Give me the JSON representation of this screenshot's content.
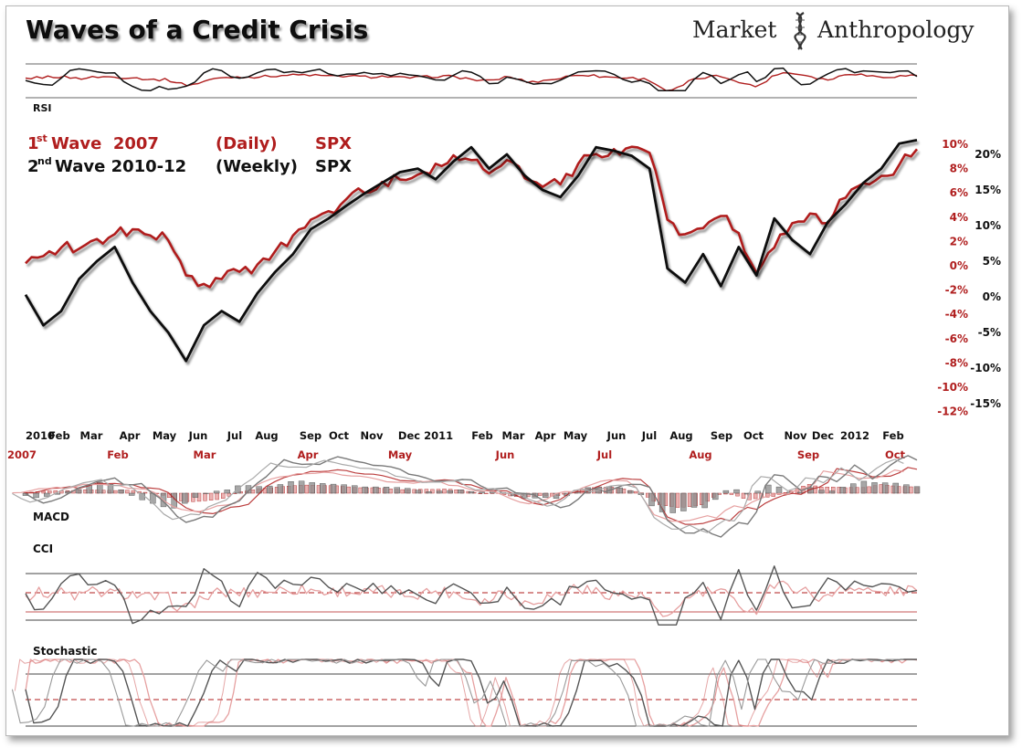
{
  "header": {
    "title": "Waves of a Credit Crisis",
    "brand_left": "Market",
    "brand_right": "Anthropology"
  },
  "legend": {
    "red": {
      "ord": "1",
      "ord_suffix": "st",
      "text": "Wave  2007",
      "freq": "(Daily)",
      "ticker": "SPX"
    },
    "black": {
      "ord": "2",
      "ord_suffix": "nd",
      "text": "Wave 2010-12",
      "freq": "(Weekly)",
      "ticker": "SPX"
    }
  },
  "colors": {
    "red": "#b01e1e",
    "black": "#111111",
    "red_light": "#e6a0a0",
    "black_light": "#7a7a7a"
  },
  "panels": {
    "rsi": "RSI",
    "macd": "MACD",
    "cci": "CCI",
    "stochastic": "Stochastic"
  },
  "chart_data": [
    {
      "type": "line",
      "title": "Waves of a Credit Crisis",
      "x_labels_black": [
        "2010",
        "Feb",
        "Mar",
        "Apr",
        "May",
        "Jun",
        "Jul",
        "Aug",
        "Sep",
        "Oct",
        "Nov",
        "Dec 2011",
        "Feb",
        "Mar",
        "Apr",
        "May",
        "Jun",
        "Jul",
        "Aug",
        "Sep",
        "Oct",
        "Nov",
        "Dec",
        "2012",
        "Feb"
      ],
      "x_labels_red": [
        "2007",
        "Feb",
        "Mar",
        "Apr",
        "May",
        "Jun",
        "Jul",
        "Aug",
        "Sep",
        "Oct"
      ],
      "y_axis_red": {
        "unit": "%",
        "ticks": [
          "10%",
          "8%",
          "6%",
          "4%",
          "2%",
          "0%",
          "-2%",
          "-4%",
          "-6%",
          "-8%",
          "-10%",
          "-12%"
        ]
      },
      "y_axis_black": {
        "unit": "%",
        "ticks": [
          "20%",
          "15%",
          "10%",
          "5%",
          "0%",
          "-5%",
          "-10%",
          "-15%"
        ]
      },
      "series": [
        {
          "name": "1st Wave 2007 (Daily) SPX",
          "color": "#b01e1e",
          "x": [
            0,
            2,
            4,
            6,
            8,
            10,
            12,
            14,
            16,
            18,
            20,
            22,
            24,
            26,
            28,
            30,
            32,
            34,
            36,
            38,
            40,
            42,
            44,
            46,
            48,
            50,
            52,
            54,
            56,
            58,
            60,
            62,
            64,
            66,
            68,
            70,
            72,
            74,
            76,
            78,
            80,
            82,
            84,
            86,
            88,
            90,
            92,
            94,
            96,
            98,
            100
          ],
          "values": [
            0.2,
            0.8,
            1.5,
            1.4,
            2.2,
            2.6,
            3.0,
            2.5,
            2.1,
            -0.8,
            -1.5,
            -1.1,
            -0.5,
            0.1,
            1.2,
            2.5,
            3.8,
            4.5,
            5.5,
            6.0,
            6.9,
            7.1,
            7.5,
            8.4,
            9.1,
            8.7,
            7.6,
            8.7,
            7.2,
            6.5,
            6.7,
            8.4,
            9.2,
            9.6,
            9.8,
            9.3,
            3.8,
            2.6,
            3.1,
            4.1,
            2.7,
            -0.6,
            1.5,
            3.5,
            4.3,
            3.5,
            5.6,
            6.8,
            7.4,
            8.3,
            9.6
          ]
        },
        {
          "name": "2nd Wave 2010-12 (Weekly) SPX",
          "color": "#111111",
          "x": [
            0,
            2,
            4,
            6,
            8,
            10,
            12,
            14,
            16,
            18,
            20,
            22,
            24,
            26,
            28,
            30,
            32,
            34,
            36,
            38,
            40,
            42,
            44,
            46,
            48,
            50,
            52,
            54,
            56,
            58,
            60,
            62,
            64,
            66,
            68,
            70,
            72,
            74,
            76,
            78,
            80,
            82,
            84,
            86,
            88,
            90,
            92,
            94,
            96,
            98,
            100
          ],
          "values": [
            0.3,
            -4.0,
            -2.0,
            2.5,
            5.0,
            7.0,
            2.0,
            -2.0,
            -5.0,
            -9.0,
            -4.0,
            -2.0,
            -3.5,
            0.5,
            3.5,
            6.0,
            9.5,
            11.0,
            12.8,
            14.5,
            16.0,
            17.5,
            18.0,
            16.5,
            19.0,
            21.0,
            18.0,
            20.0,
            17.0,
            15.0,
            14.0,
            17.0,
            21.0,
            20.5,
            19.8,
            18.0,
            4.0,
            2.0,
            6.0,
            1.5,
            7.0,
            3.0,
            11.0,
            8.0,
            6.0,
            10.5,
            13.0,
            16.0,
            18.0,
            21.5,
            22.0
          ]
        }
      ]
    },
    {
      "type": "line",
      "title": "RSI",
      "series": [
        {
          "name": "2007",
          "values": []
        },
        {
          "name": "2010-12",
          "values": []
        }
      ]
    },
    {
      "type": "bar",
      "title": "MACD",
      "series": [
        {
          "name": "2007",
          "values": []
        },
        {
          "name": "2010-12",
          "values": []
        }
      ]
    },
    {
      "type": "line",
      "title": "CCI",
      "series": [
        {
          "name": "2007",
          "values": []
        },
        {
          "name": "2010-12",
          "values": []
        }
      ]
    },
    {
      "type": "line",
      "title": "Stochastic",
      "series": [
        {
          "name": "2007",
          "values": []
        },
        {
          "name": "2010-12",
          "values": []
        }
      ]
    }
  ]
}
